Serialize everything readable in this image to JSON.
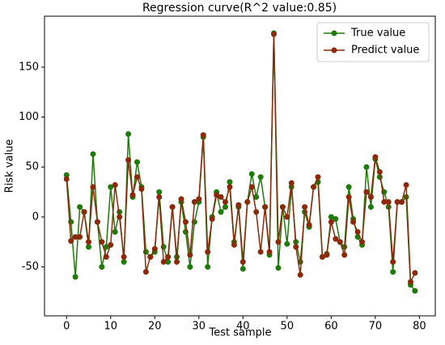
{
  "chart_data": {
    "type": "line",
    "title": "Regression curve(R^2  value:0.85)",
    "xlabel": "Test sample",
    "ylabel": "Risk value",
    "x": [
      0,
      1,
      2,
      3,
      4,
      5,
      6,
      7,
      8,
      9,
      10,
      11,
      12,
      13,
      14,
      15,
      16,
      17,
      18,
      19,
      20,
      21,
      22,
      23,
      24,
      25,
      26,
      27,
      28,
      29,
      30,
      31,
      32,
      33,
      34,
      35,
      36,
      37,
      38,
      39,
      40,
      41,
      42,
      43,
      44,
      45,
      46,
      47,
      48,
      49,
      50,
      51,
      52,
      53,
      54,
      55,
      56,
      57,
      58,
      59,
      60,
      61,
      62,
      63,
      64,
      65,
      66,
      67,
      68,
      69,
      70,
      71,
      72,
      73,
      74,
      75,
      76,
      77,
      78,
      79
    ],
    "series": [
      {
        "name": "True value",
        "color": "#1f7a0a",
        "values": [
          42,
          -5,
          -60,
          10,
          5,
          -30,
          63,
          -5,
          -50,
          -30,
          30,
          -15,
          5,
          -45,
          83,
          20,
          55,
          30,
          -35,
          -40,
          -35,
          25,
          -30,
          -45,
          10,
          -40,
          15,
          -15,
          -50,
          -5,
          15,
          80,
          -50,
          0,
          25,
          5,
          10,
          35,
          -25,
          10,
          -52,
          15,
          43,
          20,
          40,
          10,
          -38,
          184,
          -51,
          10,
          -27,
          30,
          -25,
          -45,
          5,
          -10,
          30,
          35,
          -40,
          -37,
          0,
          -2,
          -25,
          -30,
          30,
          -2,
          -20,
          -28,
          50,
          10,
          58,
          40,
          25,
          10,
          -55,
          15,
          15,
          20,
          -68,
          -74
        ]
      },
      {
        "name": "Predict value",
        "color": "#8b2a0a",
        "values": [
          38,
          -24,
          -20,
          -20,
          5,
          -25,
          30,
          -5,
          -25,
          -40,
          -28,
          32,
          0,
          -40,
          57,
          22,
          40,
          28,
          -55,
          -40,
          -32,
          20,
          -45,
          -40,
          10,
          -45,
          18,
          -5,
          -38,
          15,
          18,
          82,
          -35,
          -2,
          22,
          20,
          15,
          30,
          -28,
          12,
          -45,
          15,
          30,
          5,
          -35,
          10,
          -35,
          183,
          -25,
          10,
          0,
          34,
          -30,
          -58,
          10,
          -8,
          30,
          40,
          -40,
          -38,
          -5,
          -22,
          -25,
          -38,
          20,
          -5,
          -15,
          -25,
          25,
          20,
          60,
          45,
          15,
          15,
          -45,
          15,
          15,
          32,
          -65,
          -56
        ]
      }
    ],
    "xlim": [
      -5,
      83.6
    ],
    "ylim": [
      -99,
      201
    ],
    "xticks": [
      0,
      10,
      20,
      30,
      40,
      50,
      60,
      70,
      80
    ],
    "yticks": [
      -50,
      0,
      50,
      100,
      150
    ],
    "legend": "upper right"
  }
}
